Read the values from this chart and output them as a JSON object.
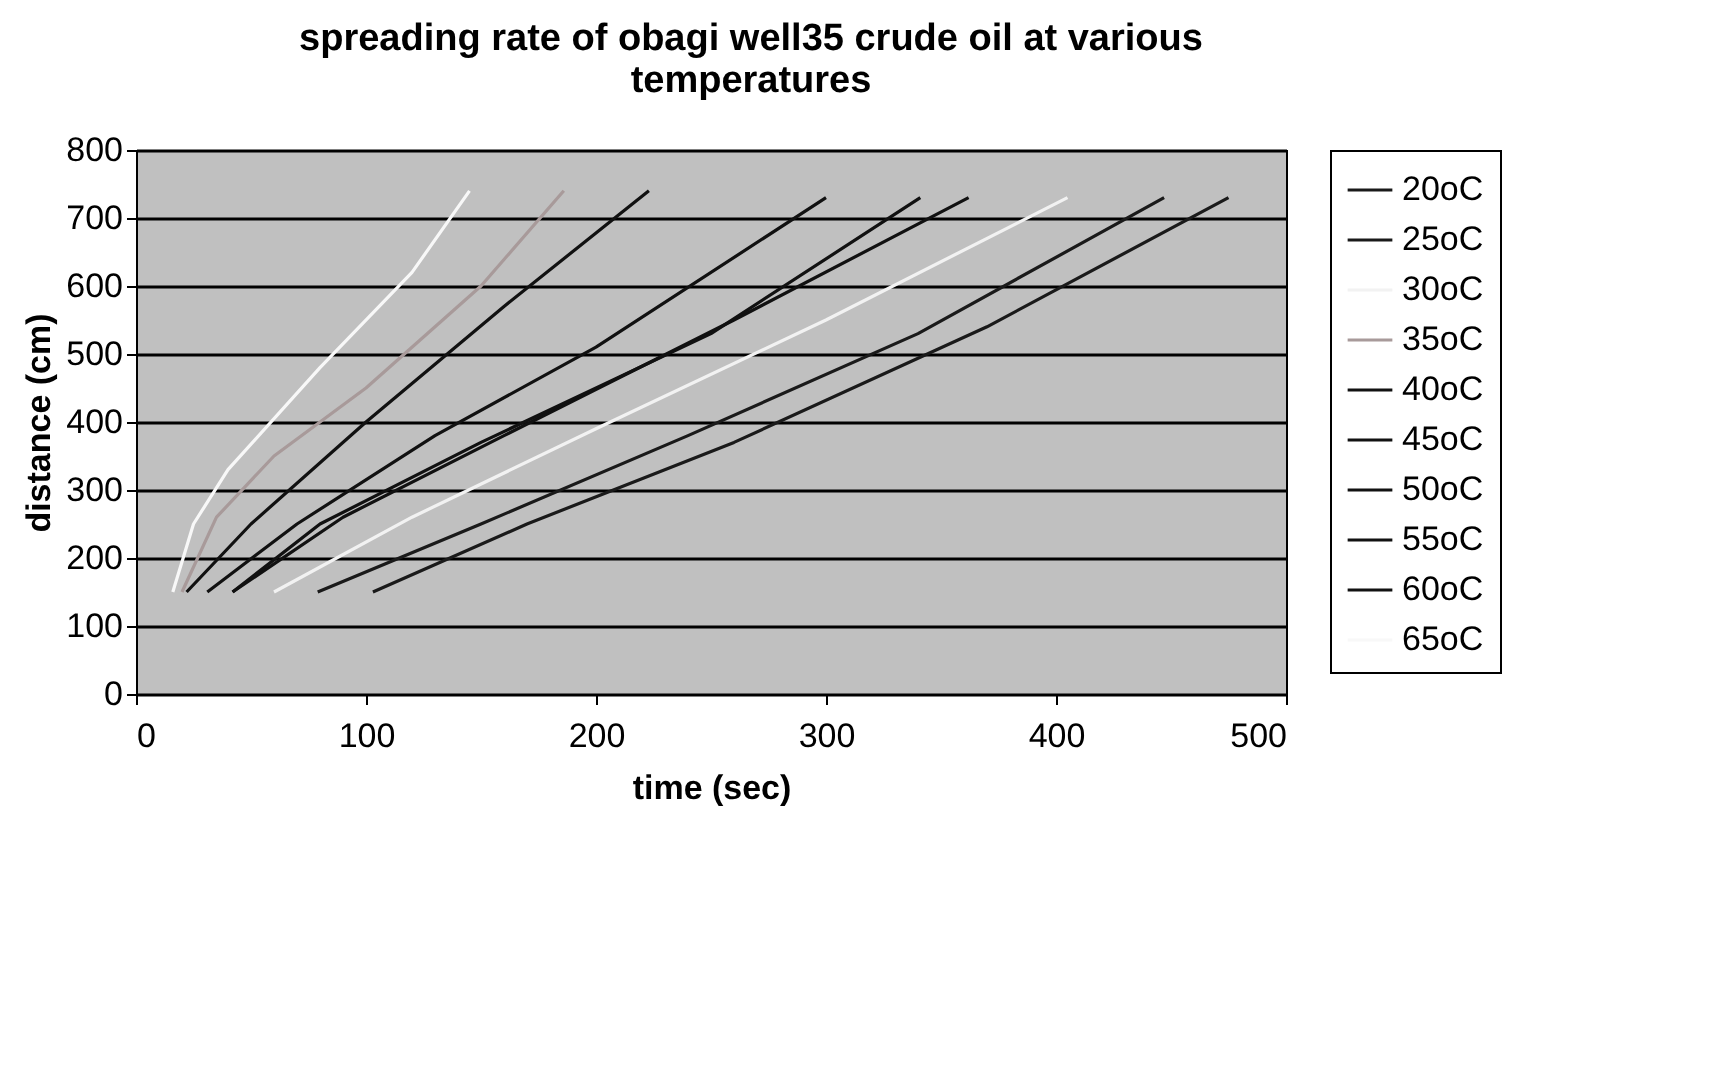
{
  "chart_data": {
    "type": "line",
    "title": "spreading rate of obagi well35 crude oil at various\ntemperatures",
    "xlabel": "time (sec)",
    "ylabel": "distance (cm)",
    "xlim": [
      0,
      500
    ],
    "xticks": [
      0,
      100,
      200,
      300,
      400,
      500
    ],
    "ylim": [
      0,
      800
    ],
    "yticks": [
      0,
      100,
      200,
      300,
      400,
      500,
      600,
      700,
      800
    ],
    "grid": "y",
    "legend": "right",
    "marker": "none",
    "line_style": "solid",
    "series": [
      {
        "name": "20oC",
        "color": "#1a1a1a",
        "x": [
          103,
          170,
          260,
          370,
          475
        ],
        "values": [
          150,
          250,
          370,
          540,
          730
        ]
      },
      {
        "name": "25oC",
        "color": "#1a1a1a",
        "x": [
          79,
          150,
          240,
          340,
          447
        ],
        "values": [
          150,
          250,
          380,
          530,
          730
        ]
      },
      {
        "name": "30oC",
        "color": "#f2f2f2",
        "x": [
          60,
          120,
          200,
          300,
          405
        ],
        "values": [
          150,
          260,
          390,
          550,
          730
        ]
      },
      {
        "name": "35oC",
        "color": "#a89a9a",
        "x": [
          20,
          35,
          60,
          100,
          150,
          186
        ],
        "values": [
          150,
          260,
          350,
          450,
          600,
          740
        ]
      },
      {
        "name": "40oC",
        "color": "#111111"
      },
      {
        "name": "45oC",
        "color": "#111111",
        "x": [
          42,
          90,
          160,
          260,
          362
        ],
        "values": [
          150,
          260,
          380,
          550,
          730
        ]
      },
      {
        "name": "50oC",
        "color": "#111111",
        "x": [
          42,
          80,
          150,
          250,
          341
        ],
        "values": [
          150,
          250,
          370,
          530,
          730
        ]
      },
      {
        "name": "55oC",
        "color": "#111111",
        "x": [
          31,
          70,
          130,
          200,
          300
        ],
        "values": [
          150,
          250,
          380,
          510,
          730
        ]
      },
      {
        "name": "60oC",
        "color": "#111111",
        "x": [
          22,
          50,
          100,
          160,
          223
        ],
        "values": [
          150,
          250,
          400,
          570,
          740
        ]
      },
      {
        "name": "65oC",
        "color": "#f8f8f8",
        "x": [
          16,
          25,
          40,
          80,
          120,
          145
        ],
        "values": [
          150,
          250,
          330,
          480,
          620,
          740
        ]
      }
    ]
  }
}
